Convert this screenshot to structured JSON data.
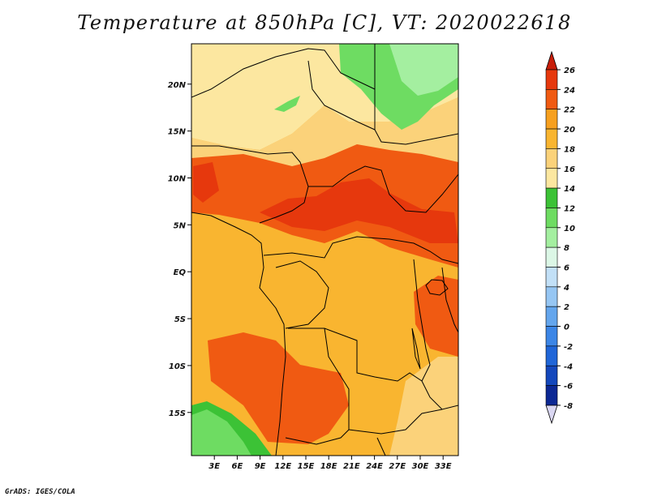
{
  "title": "Temperature at 850hPa [C], VT: 2020022618",
  "credit": "GrADS: IGES/COLA",
  "map": {
    "lat_ticks": [
      {
        "value": 20,
        "label": "20N"
      },
      {
        "value": 15,
        "label": "15N"
      },
      {
        "value": 10,
        "label": "10N"
      },
      {
        "value": 5,
        "label": "5N"
      },
      {
        "value": 0,
        "label": "EQ"
      },
      {
        "value": -5,
        "label": "5S"
      },
      {
        "value": -10,
        "label": "10S"
      },
      {
        "value": -15,
        "label": "15S"
      }
    ],
    "lon_ticks": [
      {
        "value": 3,
        "label": "3E"
      },
      {
        "value": 6,
        "label": "6E"
      },
      {
        "value": 9,
        "label": "9E"
      },
      {
        "value": 12,
        "label": "12E"
      },
      {
        "value": 15,
        "label": "15E"
      },
      {
        "value": 18,
        "label": "18E"
      },
      {
        "value": 21,
        "label": "21E"
      },
      {
        "value": 24,
        "label": "24E"
      },
      {
        "value": 27,
        "label": "27E"
      },
      {
        "value": 30,
        "label": "30E"
      },
      {
        "value": 33,
        "label": "33E"
      }
    ]
  },
  "colorbar": {
    "levels": [
      {
        "label": "26",
        "color": "#e6380d"
      },
      {
        "label": "24",
        "color": "#f05a12"
      },
      {
        "label": "22",
        "color": "#f7a01f"
      },
      {
        "label": "20",
        "color": "#f9b530"
      },
      {
        "label": "18",
        "color": "#fbd27a"
      },
      {
        "label": "16",
        "color": "#fce7a0"
      },
      {
        "label": "14",
        "color": "#3cc236"
      },
      {
        "label": "12",
        "color": "#6edc62"
      },
      {
        "label": "10",
        "color": "#a4efa0"
      },
      {
        "label": "8",
        "color": "#dcf7e6"
      },
      {
        "label": "6",
        "color": "#c2e0f7"
      },
      {
        "label": "4",
        "color": "#96c6f3"
      },
      {
        "label": "2",
        "color": "#64a6ed"
      },
      {
        "label": "0",
        "color": "#3c86e6"
      },
      {
        "label": "-2",
        "color": "#2066d8"
      },
      {
        "label": "-4",
        "color": "#1448bc"
      },
      {
        "label": "-6",
        "color": "#0c2894"
      },
      {
        "label": "-8",
        "color": "#050f5c"
      }
    ],
    "top_color": "#c81e0a",
    "bottom_color": "#dad7f2"
  }
}
